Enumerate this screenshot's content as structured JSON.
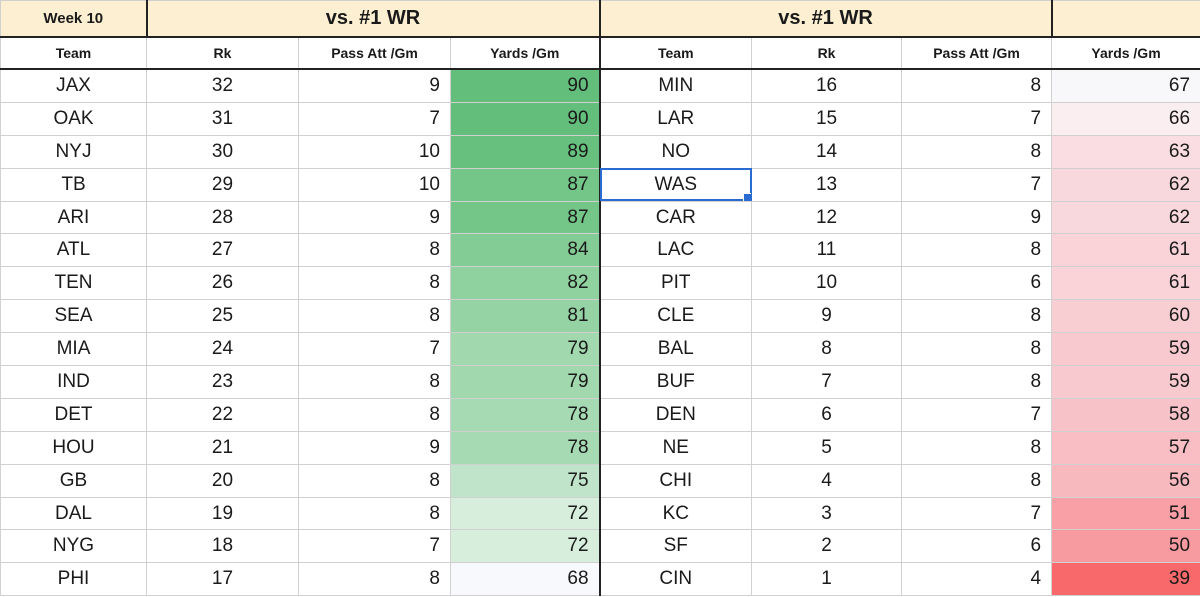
{
  "header": {
    "week_label": "Week 10",
    "left_group_title": "vs. #1 WR",
    "right_group_title": "vs. #1 WR",
    "far_right_title": ""
  },
  "columns": {
    "left": [
      "Team",
      "Rk",
      "Pass Att /Gm",
      "Yards /Gm"
    ],
    "right": [
      "Team",
      "Rk",
      "Pass Att /Gm",
      "Yards /Gm"
    ]
  },
  "left_rows": [
    {
      "team": "JAX",
      "rk": "32",
      "att": "9",
      "yds": "90",
      "fill": "#63be7b"
    },
    {
      "team": "OAK",
      "rk": "31",
      "att": "7",
      "yds": "90",
      "fill": "#63be7b"
    },
    {
      "team": "NYJ",
      "rk": "30",
      "att": "10",
      "yds": "89",
      "fill": "#68c07f"
    },
    {
      "team": "TB",
      "rk": "29",
      "att": "10",
      "yds": "87",
      "fill": "#73c588"
    },
    {
      "team": "ARI",
      "rk": "28",
      "att": "9",
      "yds": "87",
      "fill": "#73c588"
    },
    {
      "team": "ATL",
      "rk": "27",
      "att": "8",
      "yds": "84",
      "fill": "#84cc96"
    },
    {
      "team": "TEN",
      "rk": "26",
      "att": "8",
      "yds": "82",
      "fill": "#8fd19f"
    },
    {
      "team": "SEA",
      "rk": "25",
      "att": "8",
      "yds": "81",
      "fill": "#95d3a4"
    },
    {
      "team": "MIA",
      "rk": "24",
      "att": "7",
      "yds": "79",
      "fill": "#a1d8ae"
    },
    {
      "team": "IND",
      "rk": "23",
      "att": "8",
      "yds": "79",
      "fill": "#a1d8ae"
    },
    {
      "team": "DET",
      "rk": "22",
      "att": "8",
      "yds": "78",
      "fill": "#a6dab2"
    },
    {
      "team": "HOU",
      "rk": "21",
      "att": "9",
      "yds": "78",
      "fill": "#a6dab2"
    },
    {
      "team": "GB",
      "rk": "20",
      "att": "8",
      "yds": "75",
      "fill": "#c0e4ca"
    },
    {
      "team": "DAL",
      "rk": "19",
      "att": "8",
      "yds": "72",
      "fill": "#d8eedd"
    },
    {
      "team": "NYG",
      "rk": "18",
      "att": "7",
      "yds": "72",
      "fill": "#d8eedd"
    },
    {
      "team": "PHI",
      "rk": "17",
      "att": "8",
      "yds": "68",
      "fill": "#f8f9fc"
    }
  ],
  "right_rows": [
    {
      "team": "MIN",
      "rk": "16",
      "att": "8",
      "yds": "67",
      "fill": "#f8f8fb"
    },
    {
      "team": "LAR",
      "rk": "15",
      "att": "7",
      "yds": "66",
      "fill": "#fbeef1"
    },
    {
      "team": "NO",
      "rk": "14",
      "att": "8",
      "yds": "63",
      "fill": "#f9dde2"
    },
    {
      "team": "WAS",
      "rk": "13",
      "att": "7",
      "yds": "62",
      "fill": "#f9d8dd"
    },
    {
      "team": "CAR",
      "rk": "12",
      "att": "9",
      "yds": "62",
      "fill": "#f9d8dd"
    },
    {
      "team": "LAC",
      "rk": "11",
      "att": "8",
      "yds": "61",
      "fill": "#f9d3d8"
    },
    {
      "team": "PIT",
      "rk": "10",
      "att": "6",
      "yds": "61",
      "fill": "#f9d3d8"
    },
    {
      "team": "CLE",
      "rk": "9",
      "att": "8",
      "yds": "60",
      "fill": "#f8ced3"
    },
    {
      "team": "BAL",
      "rk": "8",
      "att": "8",
      "yds": "59",
      "fill": "#f8c9ce"
    },
    {
      "team": "BUF",
      "rk": "7",
      "att": "8",
      "yds": "59",
      "fill": "#f8c9ce"
    },
    {
      "team": "DEN",
      "rk": "6",
      "att": "7",
      "yds": "58",
      "fill": "#f8c3c8"
    },
    {
      "team": "NE",
      "rk": "5",
      "att": "8",
      "yds": "57",
      "fill": "#f8bec3"
    },
    {
      "team": "CHI",
      "rk": "4",
      "att": "8",
      "yds": "56",
      "fill": "#f8b9be"
    },
    {
      "team": "KC",
      "rk": "3",
      "att": "7",
      "yds": "51",
      "fill": "#f8a0a6"
    },
    {
      "team": "SF",
      "rk": "2",
      "att": "6",
      "yds": "50",
      "fill": "#f89ba1"
    },
    {
      "team": "CIN",
      "rk": "1",
      "att": "4",
      "yds": "39",
      "fill": "#f8696b"
    }
  ],
  "selected_cell": {
    "side": "right",
    "row": 3,
    "column": "team"
  }
}
